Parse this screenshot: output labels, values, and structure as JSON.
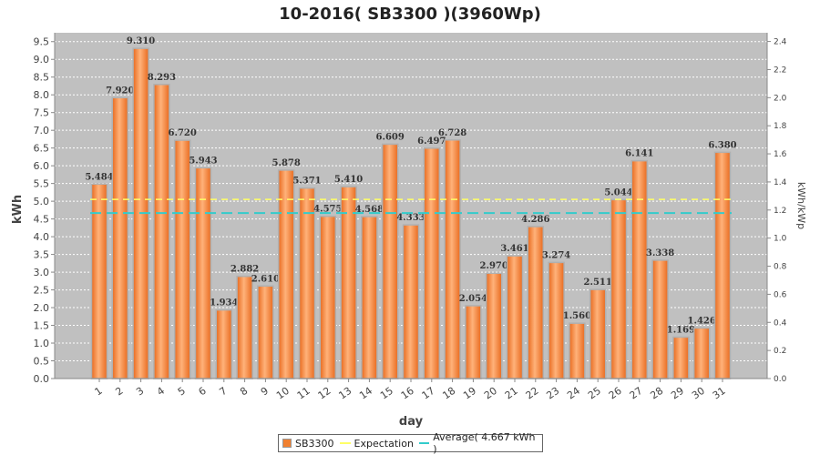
{
  "chart_data": {
    "type": "bar",
    "title": "10-2016( SB3300 )(3960Wp)",
    "xlabel": "day",
    "ylabel": "kWh",
    "ylabel_right": "kWh/kWp",
    "ylim": [
      0,
      9.75
    ],
    "ylim_right": [
      0,
      2.4621
    ],
    "yticks": [
      "0.0",
      "0.5",
      "1.0",
      "1.5",
      "2.0",
      "2.5",
      "3.0",
      "3.5",
      "4.0",
      "4.5",
      "5.0",
      "5.5",
      "6.0",
      "6.5",
      "7.0",
      "7.5",
      "8.0",
      "8.5",
      "9.0",
      "9.5"
    ],
    "yticks_right": [
      "0.0",
      "0.2",
      "0.4",
      "0.6",
      "0.8",
      "1.0",
      "1.2",
      "1.4",
      "1.6",
      "1.8",
      "2.0",
      "2.2",
      "2.4"
    ],
    "categories": [
      "1",
      "2",
      "3",
      "4",
      "5",
      "6",
      "7",
      "8",
      "9",
      "10",
      "11",
      "12",
      "13",
      "14",
      "15",
      "16",
      "17",
      "18",
      "19",
      "20",
      "21",
      "22",
      "23",
      "24",
      "25",
      "26",
      "27",
      "28",
      "29",
      "30",
      "31"
    ],
    "series": [
      {
        "name": "SB3300",
        "values": [
          5.484,
          7.92,
          9.31,
          8.293,
          6.72,
          5.943,
          1.934,
          2.882,
          2.61,
          5.878,
          5.371,
          4.575,
          5.41,
          4.568,
          6.609,
          4.333,
          6.497,
          6.728,
          2.054,
          2.97,
          3.461,
          4.286,
          3.274,
          1.56,
          2.511,
          5.044,
          6.141,
          3.338,
          1.169,
          1.426,
          6.38
        ],
        "labels": [
          "5.484",
          "7.920",
          "9.310",
          "8.293",
          "6.720",
          "5.943",
          "1.934",
          "2.882",
          "2.610",
          "5.878",
          "5.371",
          "4.575",
          "5.410",
          "4.568",
          "6.609",
          "4.333",
          "6.497",
          "6.728",
          "2.054",
          "2.970",
          "3.461",
          "4.286",
          "3.274",
          "1.560",
          "2.511",
          "5.044",
          "6.141",
          "3.338",
          "1.169",
          "1.426",
          "6.380"
        ]
      }
    ],
    "expectation": 5.05,
    "average": 4.667,
    "legend": {
      "bar": "SB3300",
      "expectation": "Expectation",
      "average": "Average( 4.667 kWh )"
    },
    "colors": {
      "plot_bg": "#c0c0c0",
      "bar": "#f08030",
      "bar_light": "#ffb070",
      "expectation": "#ffff66",
      "average": "#33cccc",
      "grid": "#ffffff"
    }
  }
}
